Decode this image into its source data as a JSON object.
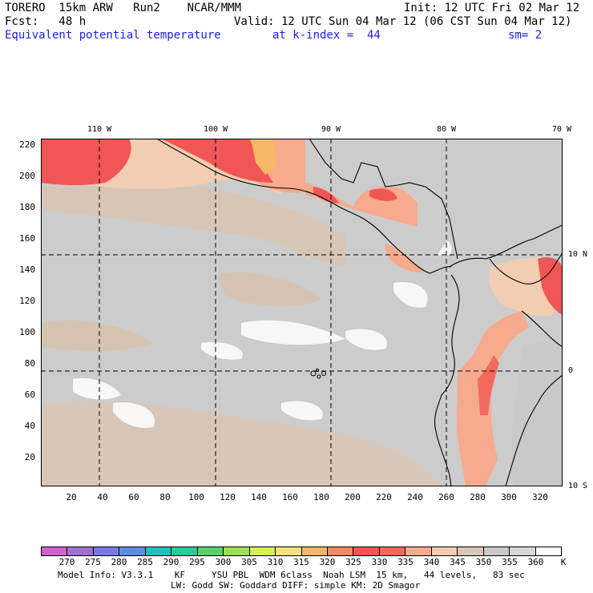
{
  "header": {
    "line1_left": "TORERO  15km ARW   Run2    NCAR/MMM",
    "line1_right": "Init: 12 UTC Fri 02 Mar 12",
    "line2_left": "Fcst:   48 h",
    "line2_right": "Valid: 12 UTC Sun 04 Mar 12 (06 CST Sun 04 Mar 12)",
    "field_name": "Equivalent potential temperature",
    "level": "at k-index =  44",
    "smoothing": "sm= 2"
  },
  "map": {
    "lon_labels": [
      "110 W",
      "100 W",
      "90 W",
      "80 W",
      "70 W"
    ],
    "lat_labels": [
      "10 N",
      "0",
      "10 S"
    ],
    "y_ticks": [
      "220",
      "200",
      "180",
      "160",
      "140",
      "120",
      "100",
      "80",
      "60",
      "40",
      "20"
    ],
    "x_ticks": [
      "20",
      "40",
      "60",
      "80",
      "100",
      "120",
      "140",
      "160",
      "180",
      "200",
      "220",
      "240",
      "260",
      "280",
      "300",
      "320"
    ]
  },
  "colorbar": {
    "labels": [
      "270",
      "275",
      "280",
      "285",
      "290",
      "295",
      "300",
      "305",
      "310",
      "315",
      "320",
      "325",
      "330",
      "335",
      "340",
      "345",
      "350",
      "355",
      "360"
    ],
    "unit": "K",
    "colors": [
      "#d35fcf",
      "#a070d8",
      "#7b79e8",
      "#5e8be6",
      "#29bdbd",
      "#28c99b",
      "#55d26a",
      "#9ae24f",
      "#d8ee55",
      "#f5e27a",
      "#f6b766",
      "#f48b5f",
      "#f05656",
      "#f26a5e",
      "#f6aa8e",
      "#f3cdb2",
      "#d9c7b8",
      "#c9c9c9",
      "#d7d7d7",
      "#ffffff"
    ]
  },
  "footer": {
    "line1": "Model Info: V3.3.1    KF     YSU PBL  WDM 6class  Noah LSM  15 km,   44 levels,   83 sec",
    "line2": "LW: Godd SW: Goddard DIFF: simple KM: 2D Smagor"
  }
}
